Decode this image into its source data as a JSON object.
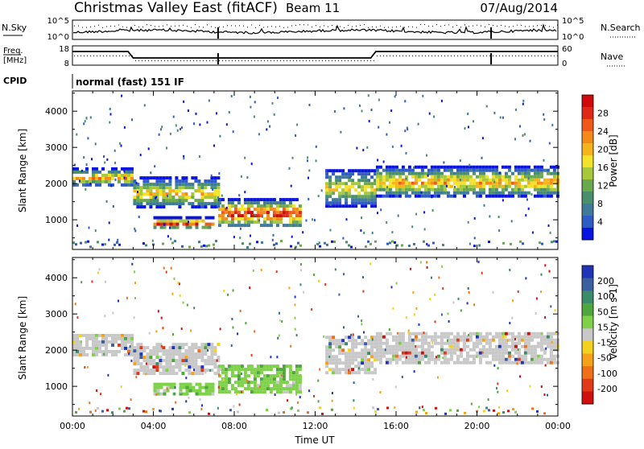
{
  "header": {
    "station": "Christmas Valley East (fitACF)",
    "beam": "Beam 11",
    "date": "07/Aug/2014"
  },
  "noise_panel": {
    "left_label": "N.Sky",
    "left_ticks": [
      "10^5",
      "10^0"
    ],
    "right_ticks": [
      "10^5",
      "10^0"
    ],
    "right_label": "N.Search"
  },
  "freq_panel": {
    "left_label_1": "Freq.",
    "left_label_2": "[MHz]",
    "left_ticks": [
      "18",
      "8"
    ],
    "right_ticks": [
      "60",
      "0"
    ],
    "right_label": "Nave",
    "cpid_label": "CPID",
    "cpid_text": "normal (fast) 151 IF"
  },
  "chart_data": [
    {
      "type": "heatmap",
      "title": "",
      "quantity": "Power",
      "xlabel": "Time UT",
      "ylabel": "Slant Range [km]",
      "x_range": [
        "00:00",
        "00:00"
      ],
      "x_ticks": [
        "00:00",
        "04:00",
        "08:00",
        "12:00",
        "16:00",
        "20:00",
        "00:00"
      ],
      "ylim": [
        180,
        4560
      ],
      "y_ticks": [
        1000,
        2000,
        3000,
        4000
      ],
      "colorbar": {
        "label": "Power [dB]",
        "ticks": [
          4,
          8,
          12,
          16,
          20,
          24,
          28
        ],
        "range": [
          0,
          30
        ],
        "colors": [
          "#0a14e0",
          "#2f5bc4",
          "#3f7a9a",
          "#4a8f6c",
          "#6aa84f",
          "#a6c83a",
          "#f2e32a",
          "#f6b41c",
          "#f58a1a",
          "#ef5a1a",
          "#e02818",
          "#d00a0a"
        ]
      },
      "echo_bands": [
        {
          "t_start": 0.0,
          "t_end": 3.0,
          "range_start": 1950,
          "range_end": 2450,
          "peak_db": 22
        },
        {
          "t_start": 3.0,
          "t_end": 7.2,
          "range_start": 1350,
          "range_end": 2200,
          "peak_db": 20
        },
        {
          "t_start": 4.0,
          "t_end": 7.0,
          "range_start": 780,
          "range_end": 1100,
          "peak_db": 30
        },
        {
          "t_start": 7.2,
          "t_end": 11.2,
          "range_start": 800,
          "range_end": 1600,
          "peak_db": 30
        },
        {
          "t_start": 12.5,
          "t_end": 15.0,
          "range_start": 1400,
          "range_end": 2400,
          "peak_db": 18
        },
        {
          "t_start": 15.0,
          "t_end": 24.0,
          "range_start": 1650,
          "range_end": 2500,
          "peak_db": 22
        }
      ]
    },
    {
      "type": "heatmap",
      "title": "",
      "quantity": "Velocity",
      "xlabel": "Time UT",
      "ylabel": "Slant Range [km]",
      "x_range": [
        "00:00",
        "00:00"
      ],
      "x_ticks": [
        "00:00",
        "04:00",
        "08:00",
        "12:00",
        "16:00",
        "20:00",
        "00:00"
      ],
      "ylim": [
        180,
        4560
      ],
      "y_ticks": [
        1000,
        2000,
        3000,
        4000
      ],
      "colorbar": {
        "label": "Velocity [m s-1]",
        "ticks": [
          200,
          100,
          50,
          15,
          -15,
          -50,
          -100,
          -200
        ],
        "range": [
          -250,
          250
        ],
        "colors": [
          "#2034b8",
          "#3c5fa0",
          "#3b8a6a",
          "#4ea63c",
          "#7fd14a",
          "#c8c8c8",
          "#f2d21e",
          "#f5a21a",
          "#f0701a",
          "#e03a18",
          "#d0100e"
        ]
      },
      "echo_bands": [
        {
          "t_start": 0.0,
          "t_end": 3.0,
          "range_start": 1900,
          "range_end": 2450,
          "velocity": 0
        },
        {
          "t_start": 3.0,
          "t_end": 7.2,
          "range_start": 1350,
          "range_end": 2200,
          "velocity": 0
        },
        {
          "t_start": 4.0,
          "t_end": 7.0,
          "range_start": 780,
          "range_end": 1100,
          "velocity": 40
        },
        {
          "t_start": 7.2,
          "t_end": 11.2,
          "range_start": 800,
          "range_end": 1600,
          "velocity": 40
        },
        {
          "t_start": 12.5,
          "t_end": 15.0,
          "range_start": 1400,
          "range_end": 2400,
          "velocity": 0
        },
        {
          "t_start": 15.0,
          "t_end": 24.0,
          "range_start": 1650,
          "range_end": 2500,
          "velocity": 0
        }
      ]
    }
  ]
}
